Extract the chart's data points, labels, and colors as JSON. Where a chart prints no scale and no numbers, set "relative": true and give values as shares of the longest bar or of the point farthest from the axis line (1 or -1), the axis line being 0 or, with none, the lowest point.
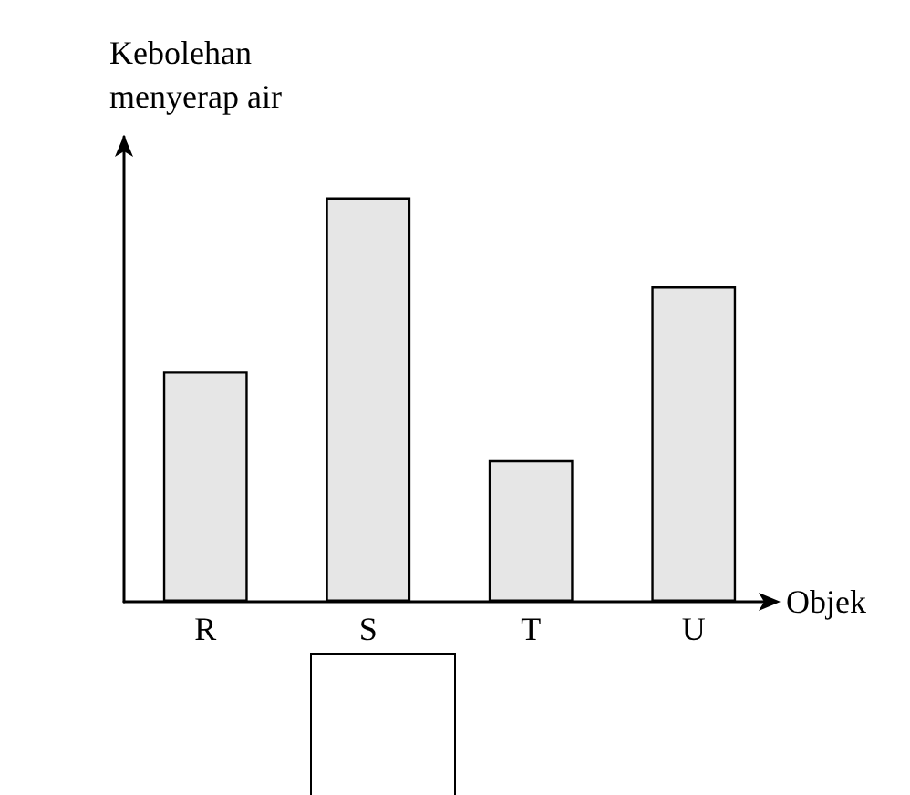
{
  "chart_data": {
    "type": "bar",
    "relative": true,
    "xlabel": "Objek",
    "ylabel": "Kebolehan\nmenyerap air",
    "categories": [
      "R",
      "S",
      "T",
      "U"
    ],
    "values": [
      0.57,
      1,
      0.35,
      0.78
    ],
    "color": "#e6e6e6"
  }
}
